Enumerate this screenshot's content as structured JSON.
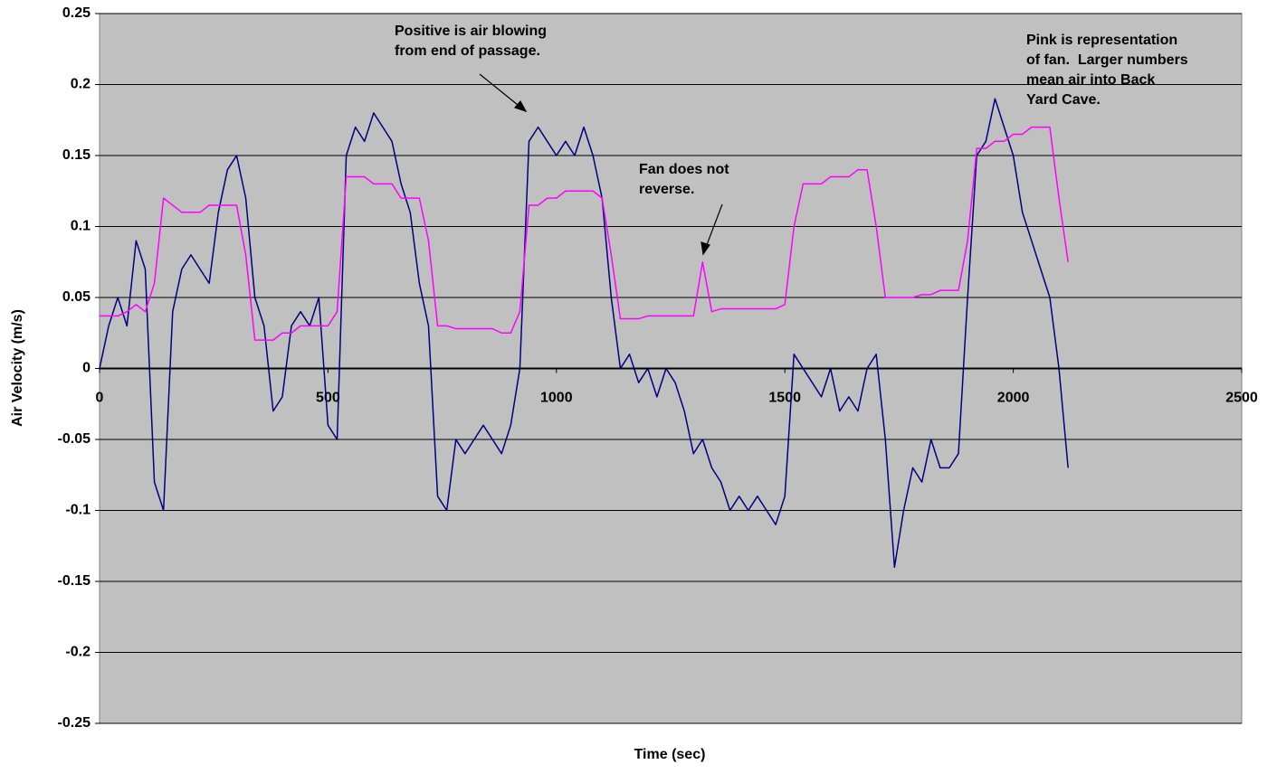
{
  "chart_data": {
    "type": "line",
    "x_label": "Time (sec)",
    "y_label": "Air Velocity (m/s)",
    "xlim": [
      0,
      2500
    ],
    "xticks": [
      0,
      500,
      1000,
      1500,
      2000,
      2500
    ],
    "ylim": [
      -0.25,
      0.25
    ],
    "yticks": [
      -0.25,
      -0.2,
      -0.15,
      -0.1,
      -0.05,
      0,
      0.05,
      0.1,
      0.15,
      0.2,
      0.25
    ],
    "grid": true,
    "x": [
      0,
      20,
      40,
      60,
      80,
      100,
      120,
      140,
      160,
      180,
      200,
      220,
      240,
      260,
      280,
      300,
      320,
      340,
      360,
      380,
      400,
      420,
      440,
      460,
      480,
      500,
      520,
      540,
      560,
      580,
      600,
      620,
      640,
      660,
      680,
      700,
      720,
      740,
      760,
      780,
      800,
      820,
      840,
      860,
      880,
      900,
      920,
      940,
      960,
      980,
      1000,
      1020,
      1040,
      1060,
      1080,
      1100,
      1120,
      1140,
      1160,
      1180,
      1200,
      1220,
      1240,
      1260,
      1280,
      1300,
      1320,
      1340,
      1360,
      1380,
      1400,
      1420,
      1440,
      1460,
      1480,
      1500,
      1520,
      1540,
      1560,
      1580,
      1600,
      1620,
      1640,
      1660,
      1680,
      1700,
      1720,
      1740,
      1760,
      1780,
      1800,
      1820,
      1840,
      1860,
      1880,
      1900,
      1920,
      1940,
      1960,
      1980,
      2000,
      2020,
      2040,
      2060,
      2080,
      2100,
      2120
    ],
    "series": [
      {
        "color": "#000080",
        "values": [
          0.0,
          0.03,
          0.05,
          0.03,
          0.09,
          0.07,
          -0.08,
          -0.1,
          0.04,
          0.07,
          0.08,
          0.07,
          0.06,
          0.11,
          0.14,
          0.15,
          0.12,
          0.05,
          0.03,
          -0.03,
          -0.02,
          0.03,
          0.04,
          0.03,
          0.05,
          -0.04,
          -0.05,
          0.15,
          0.17,
          0.16,
          0.18,
          0.17,
          0.16,
          0.13,
          0.11,
          0.06,
          0.03,
          -0.09,
          -0.1,
          -0.05,
          -0.06,
          -0.05,
          -0.04,
          -0.05,
          -0.06,
          -0.04,
          0.0,
          0.16,
          0.17,
          0.16,
          0.15,
          0.16,
          0.15,
          0.17,
          0.15,
          0.12,
          0.05,
          0.0,
          0.01,
          -0.01,
          0.0,
          -0.02,
          0.0,
          -0.01,
          -0.03,
          -0.06,
          -0.05,
          -0.07,
          -0.08,
          -0.1,
          -0.09,
          -0.1,
          -0.09,
          -0.1,
          -0.11,
          -0.09,
          0.01,
          0.0,
          -0.01,
          -0.02,
          0.0,
          -0.03,
          -0.02,
          -0.03,
          0.0,
          0.01,
          -0.05,
          -0.14,
          -0.1,
          -0.07,
          -0.08,
          -0.05,
          -0.07,
          -0.07,
          -0.06,
          0.05,
          0.15,
          0.16,
          0.19,
          0.17,
          0.15,
          0.11,
          0.09,
          0.07,
          0.05,
          0.0,
          -0.07
        ]
      },
      {
        "color": "#ff00ff",
        "values": [
          0.037,
          0.037,
          0.037,
          0.04,
          0.045,
          0.04,
          0.06,
          0.12,
          0.115,
          0.11,
          0.11,
          0.11,
          0.115,
          0.115,
          0.115,
          0.115,
          0.08,
          0.02,
          0.02,
          0.02,
          0.025,
          0.025,
          0.03,
          0.03,
          0.03,
          0.03,
          0.04,
          0.135,
          0.135,
          0.135,
          0.13,
          0.13,
          0.13,
          0.12,
          0.12,
          0.12,
          0.09,
          0.03,
          0.03,
          0.028,
          0.028,
          0.028,
          0.028,
          0.028,
          0.025,
          0.025,
          0.04,
          0.115,
          0.115,
          0.12,
          0.12,
          0.125,
          0.125,
          0.125,
          0.125,
          0.12,
          0.08,
          0.035,
          0.035,
          0.035,
          0.037,
          0.037,
          0.037,
          0.037,
          0.037,
          0.037,
          0.075,
          0.04,
          0.042,
          0.042,
          0.042,
          0.042,
          0.042,
          0.042,
          0.042,
          0.045,
          0.1,
          0.13,
          0.13,
          0.13,
          0.135,
          0.135,
          0.135,
          0.14,
          0.14,
          0.1,
          0.05,
          0.05,
          0.05,
          0.05,
          0.052,
          0.052,
          0.055,
          0.055,
          0.055,
          0.09,
          0.155,
          0.155,
          0.16,
          0.16,
          0.165,
          0.165,
          0.17,
          0.17,
          0.17,
          0.12,
          0.075
        ]
      }
    ],
    "annotations": [
      {
        "lines": [
          "Positive is air blowing",
          "from end of passage."
        ]
      },
      {
        "lines": [
          "Fan does not",
          "reverse."
        ]
      },
      {
        "lines": [
          "Pink is representation",
          "of fan.  Larger numbers",
          "mean air into Back",
          "Yard Cave."
        ]
      }
    ]
  }
}
